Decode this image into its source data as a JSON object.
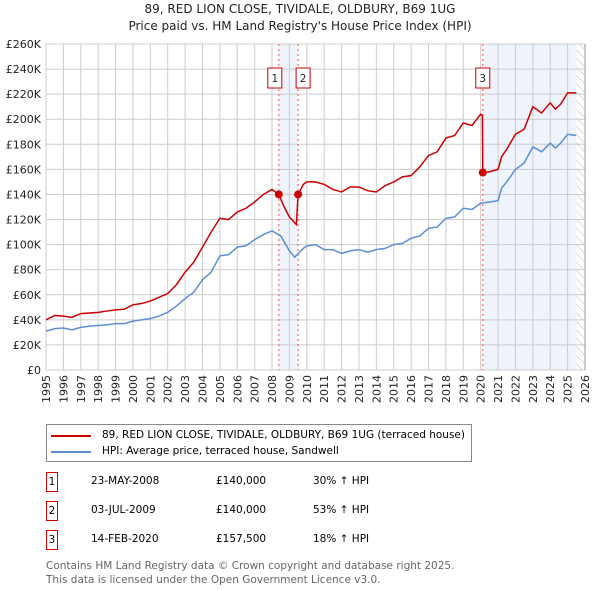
{
  "title": "89, RED LION CLOSE, TIVIDALE, OLDBURY, B69 1UG",
  "subtitle": "Price paid vs. HM Land Registry's House Price Index (HPI)",
  "chart_data": {
    "type": "line",
    "xlim": [
      1995,
      2026
    ],
    "ylim": [
      0,
      260000
    ],
    "yticks": [
      0,
      20000,
      40000,
      60000,
      80000,
      100000,
      120000,
      140000,
      160000,
      180000,
      200000,
      220000,
      240000,
      260000
    ],
    "ytick_labels": [
      "£0",
      "£20K",
      "£40K",
      "£60K",
      "£80K",
      "£100K",
      "£120K",
      "£140K",
      "£160K",
      "£180K",
      "£200K",
      "£220K",
      "£240K",
      "£260K"
    ],
    "xticks": [
      1995,
      1996,
      1997,
      1998,
      1999,
      2000,
      2001,
      2002,
      2003,
      2004,
      2005,
      2006,
      2007,
      2008,
      2009,
      2010,
      2011,
      2012,
      2013,
      2014,
      2015,
      2016,
      2017,
      2018,
      2019,
      2020,
      2021,
      2022,
      2023,
      2024,
      2025,
      2026
    ],
    "grid": true,
    "shaded_ranges": [
      [
        2008.39,
        2009.5
      ],
      [
        2020.12,
        2025.5
      ]
    ],
    "hatched_from": 2025.5,
    "series": [
      {
        "name": "89, RED LION CLOSE, TIVIDALE, OLDBURY, B69 1UG (terraced house)",
        "color": "#cc0000",
        "x": [
          1995,
          1995.5,
          1996,
          1996.5,
          1997,
          1997.5,
          1998,
          1998.5,
          1999,
          1999.5,
          2000,
          2000.5,
          2001,
          2001.5,
          2002,
          2002.5,
          2003,
          2003.5,
          2004,
          2004.5,
          2005,
          2005.5,
          2006,
          2006.5,
          2007,
          2007.5,
          2008,
          2008.39,
          2008.7,
          2009,
          2009.4,
          2009.5,
          2009.8,
          2010,
          2010.5,
          2011,
          2011.5,
          2012,
          2012.5,
          2013,
          2013.5,
          2014,
          2014.5,
          2015,
          2015.5,
          2016,
          2016.5,
          2017,
          2017.5,
          2018,
          2018.5,
          2019,
          2019.5,
          2020,
          2020.1,
          2020.12,
          2020.5,
          2021,
          2021.2,
          2021.5,
          2022,
          2022.5,
          2023,
          2023.5,
          2024,
          2024.3,
          2024.6,
          2025,
          2025.5
        ],
        "y": [
          40000,
          43500,
          43000,
          42000,
          45000,
          45500,
          46000,
          47000,
          48000,
          48500,
          52000,
          53000,
          55000,
          58000,
          61000,
          68000,
          78000,
          86000,
          98000,
          110000,
          121000,
          120000,
          126000,
          129000,
          134000,
          140000,
          144000,
          140000,
          130000,
          122000,
          116000,
          140000,
          148000,
          150000,
          150000,
          148000,
          144000,
          142000,
          146000,
          146000,
          143000,
          142000,
          147000,
          150000,
          154000,
          155000,
          162000,
          171000,
          174000,
          185000,
          187000,
          197000,
          195000,
          204000,
          203000,
          157500,
          158000,
          160000,
          170000,
          176000,
          188000,
          192000,
          210000,
          205000,
          213000,
          208000,
          212000,
          221000,
          221000
        ]
      },
      {
        "name": "HPI: Average price, terraced house, Sandwell",
        "color": "#5b8fd1",
        "x": [
          1995,
          1995.5,
          1996,
          1996.5,
          1997,
          1997.5,
          1998,
          1998.5,
          1999,
          1999.5,
          2000,
          2000.5,
          2001,
          2001.5,
          2002,
          2002.5,
          2003,
          2003.5,
          2004,
          2004.5,
          2005,
          2005.5,
          2006,
          2006.5,
          2007,
          2007.5,
          2008,
          2008.5,
          2009,
          2009.3,
          2009.8,
          2010,
          2010.5,
          2011,
          2011.5,
          2012,
          2012.5,
          2013,
          2013.5,
          2014,
          2014.5,
          2015,
          2015.5,
          2016,
          2016.5,
          2017,
          2017.5,
          2018,
          2018.5,
          2019,
          2019.5,
          2020,
          2020.5,
          2021,
          2021.2,
          2021.5,
          2022,
          2022.5,
          2023,
          2023.5,
          2024,
          2024.3,
          2024.6,
          2025,
          2025.5
        ],
        "y": [
          31000,
          33000,
          33500,
          32000,
          34000,
          35000,
          35500,
          36000,
          37000,
          37000,
          39000,
          40000,
          41000,
          43000,
          46000,
          51000,
          57000,
          62000,
          72000,
          78000,
          91000,
          92000,
          98000,
          99000,
          104000,
          108000,
          111000,
          107000,
          95000,
          90000,
          97000,
          99000,
          100000,
          96000,
          96000,
          93000,
          95000,
          96000,
          94000,
          96000,
          97000,
          100000,
          101000,
          105000,
          107000,
          113000,
          114000,
          121000,
          122000,
          129000,
          128000,
          133000,
          134000,
          135000,
          145000,
          150000,
          160000,
          165000,
          178000,
          174000,
          181000,
          177000,
          181000,
          188000,
          187000
        ]
      }
    ],
    "sales": [
      {
        "label": "1",
        "x": 2008.39,
        "y": 140000
      },
      {
        "label": "2",
        "x": 2009.5,
        "y": 140000
      },
      {
        "label": "3",
        "x": 2020.12,
        "y": 157500
      }
    ]
  },
  "legend": {
    "red": "89, RED LION CLOSE, TIVIDALE, OLDBURY, B69 1UG (terraced house)",
    "blue": "HPI: Average price, terraced house, Sandwell"
  },
  "table": [
    {
      "num": "1",
      "date": "23-MAY-2008",
      "price": "£140,000",
      "hpi": "30% ↑ HPI"
    },
    {
      "num": "2",
      "date": "03-JUL-2009",
      "price": "£140,000",
      "hpi": "53% ↑ HPI"
    },
    {
      "num": "3",
      "date": "14-FEB-2020",
      "price": "£157,500",
      "hpi": "18% ↑ HPI"
    }
  ],
  "footer": [
    "Contains HM Land Registry data © Crown copyright and database right 2025.",
    "This data is licensed under the Open Government Licence v3.0."
  ]
}
